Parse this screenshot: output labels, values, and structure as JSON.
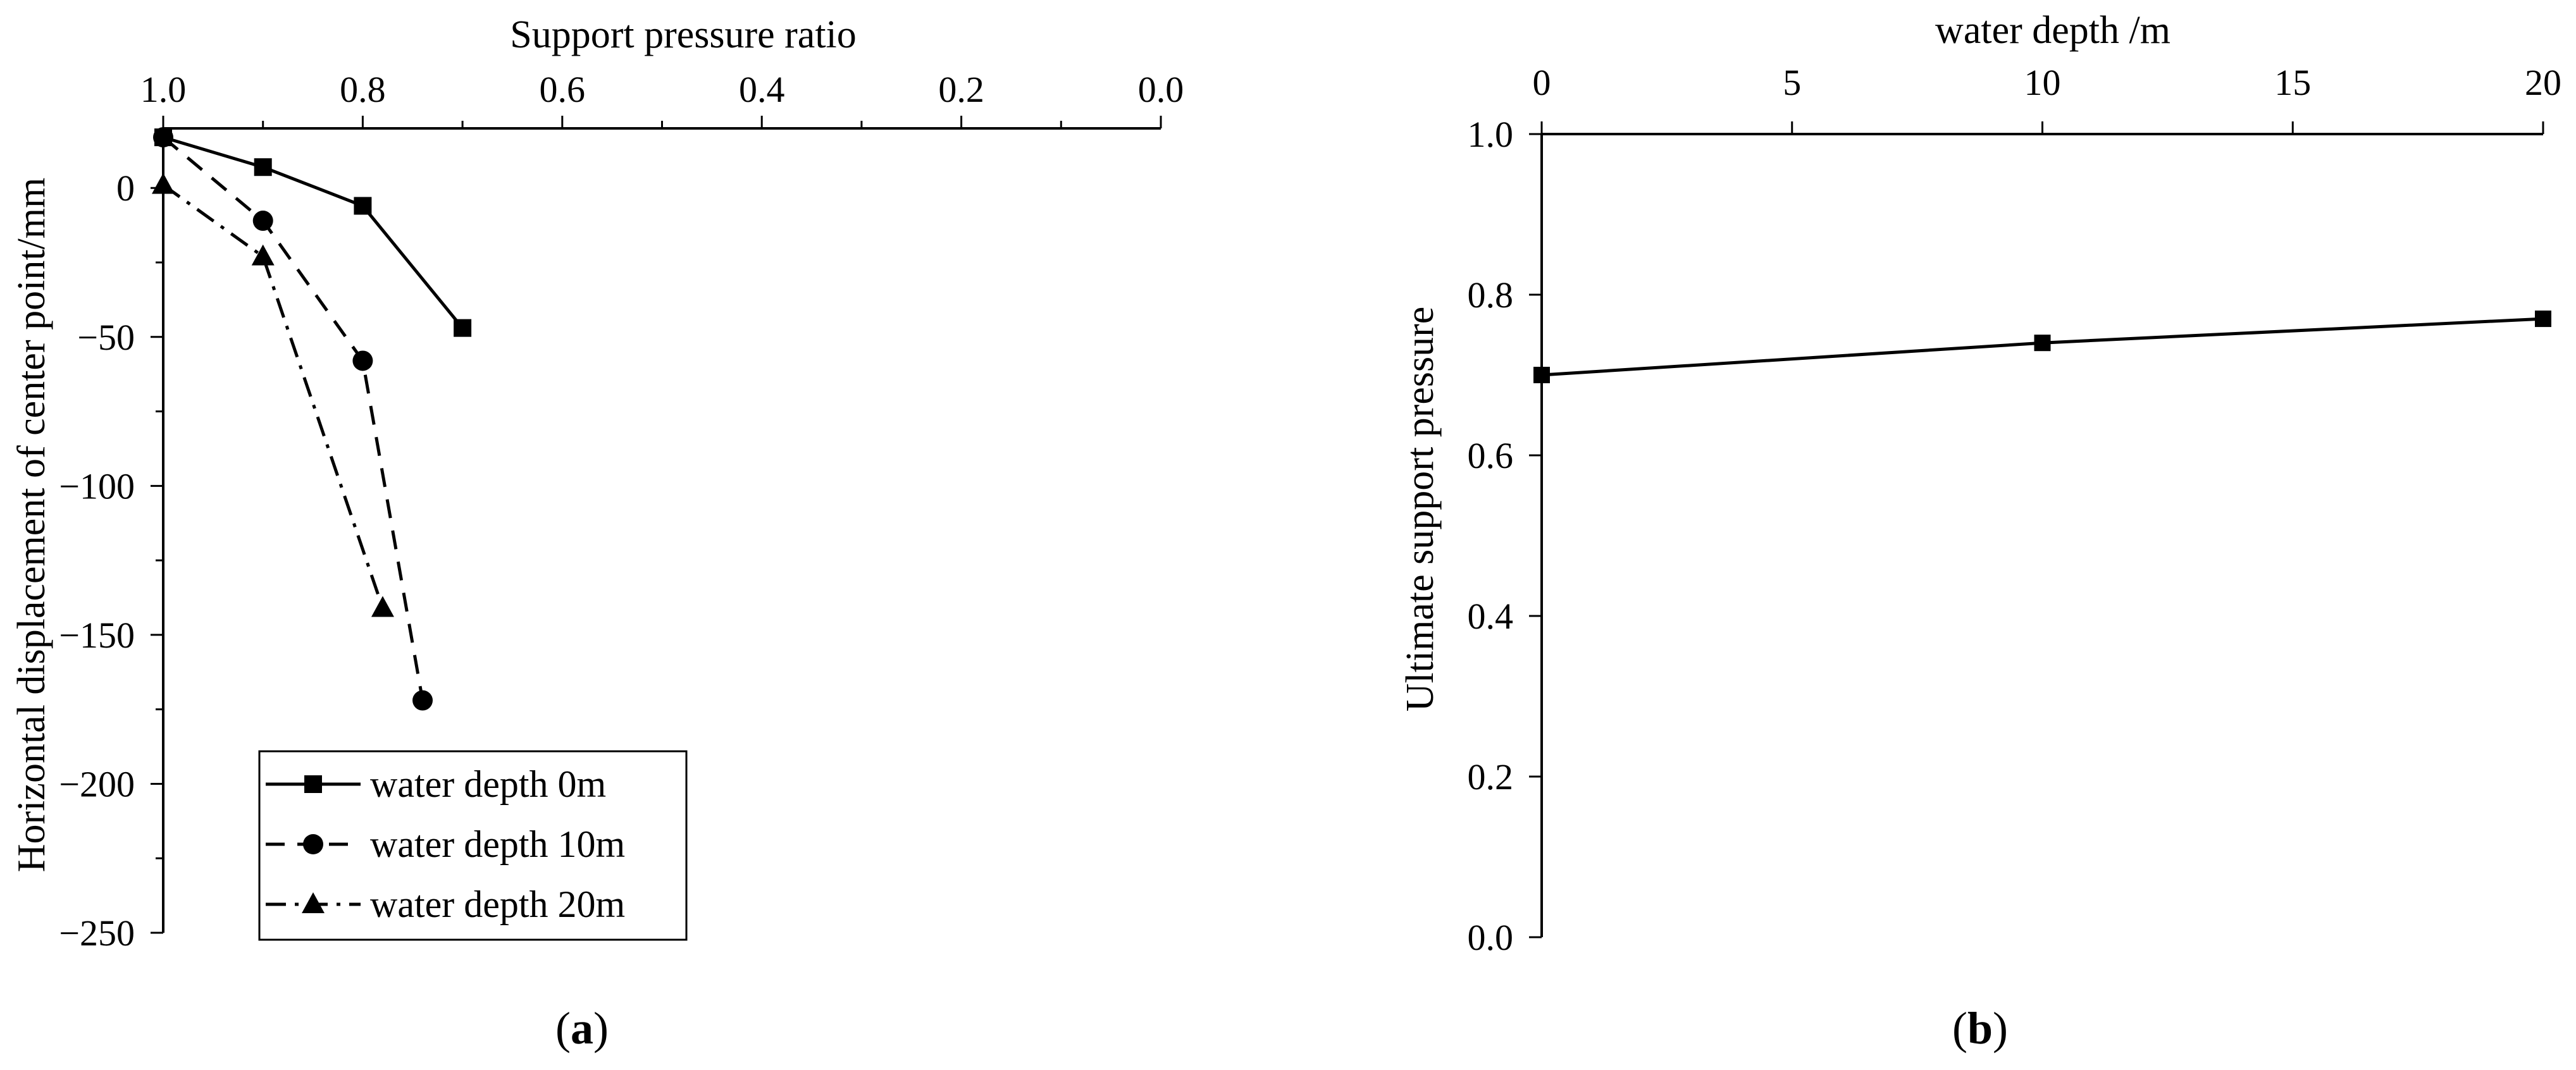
{
  "panel_a": {
    "label": "a",
    "title": "Support pressure ratio",
    "ylabel": "Horizontal displacement of center point/mm",
    "x_ticks": [
      "1.0",
      "0.8",
      "0.6",
      "0.4",
      "0.2",
      "0.0"
    ],
    "y_ticks": [
      "0",
      "−50",
      "−100",
      "−150",
      "−200",
      "−250"
    ]
  },
  "panel_b": {
    "label": "b",
    "title": "water depth /m",
    "ylabel": "Ultimate support pressure",
    "x_ticks": [
      "0",
      "5",
      "10",
      "15",
      "20"
    ],
    "y_ticks": [
      "1.0",
      "0.8",
      "0.6",
      "0.4",
      "0.2",
      "0.0"
    ]
  },
  "chart_data": [
    {
      "type": "line",
      "title": "",
      "xlabel": "Support pressure ratio",
      "ylabel": "Horizontal displacement of center point/mm",
      "xlim": [
        1.0,
        0.0
      ],
      "ylim": [
        -250,
        20
      ],
      "x_axis_position": "top",
      "x_reversed": true,
      "grid": false,
      "legend_position": "bottom-left",
      "series": [
        {
          "name": "water depth 0m",
          "marker": "square",
          "line": "solid",
          "x": [
            1.0,
            0.9,
            0.8,
            0.7
          ],
          "y": [
            17,
            7,
            -6,
            -47
          ]
        },
        {
          "name": "water depth 10m",
          "marker": "circle",
          "line": "dashed",
          "x": [
            1.0,
            0.9,
            0.8,
            0.74
          ],
          "y": [
            17,
            -11,
            -58,
            -172
          ]
        },
        {
          "name": "water depth 20m",
          "marker": "triangle",
          "line": "dash-dot",
          "x": [
            1.0,
            0.9,
            0.78
          ],
          "y": [
            1,
            -23,
            -141
          ]
        }
      ]
    },
    {
      "type": "line",
      "title": "",
      "xlabel": "water depth /m",
      "ylabel": "Ultimate support pressure",
      "xlim": [
        0,
        20
      ],
      "ylim": [
        0.0,
        1.0
      ],
      "x_axis_position": "top",
      "grid": false,
      "legend_position": "none",
      "series": [
        {
          "name": "",
          "marker": "square",
          "line": "solid",
          "x": [
            0,
            10,
            20
          ],
          "y": [
            0.7,
            0.74,
            0.77
          ]
        }
      ]
    }
  ]
}
